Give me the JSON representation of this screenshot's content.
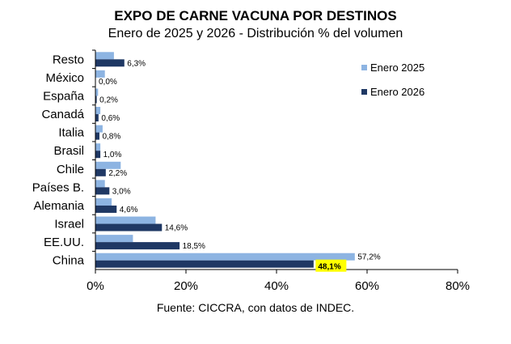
{
  "chart_data": {
    "type": "bar",
    "orientation": "horizontal",
    "title": "EXPO DE CARNE VACUNA POR DESTINOS",
    "subtitle": "Enero de 2025 y 2026 - Distribución % del volumen",
    "source": "Fuente: CICCRA, con datos de INDEC.",
    "categories": [
      "Resto",
      "México",
      "España",
      "Canadá",
      "Italia",
      "Brasil",
      "Chile",
      "Países B.",
      "Alemania",
      "Israel",
      "EE.UU.",
      "China"
    ],
    "series": [
      {
        "name": "Enero 2025",
        "color": "#8db4e2",
        "values": [
          4.0,
          2.0,
          0.5,
          1.0,
          1.5,
          1.0,
          5.5,
          2.0,
          3.5,
          13.2,
          8.2,
          57.2
        ]
      },
      {
        "name": "Enero 2026",
        "color": "#1f3864",
        "values": [
          6.3,
          0.0,
          0.2,
          0.6,
          0.8,
          1.0,
          2.2,
          3.0,
          4.6,
          14.6,
          18.5,
          48.1
        ]
      }
    ],
    "data_labels": {
      "Enero 2025": [
        "",
        "",
        "",
        "",
        "",
        "",
        "",
        "",
        "",
        "",
        "",
        "57,2%"
      ],
      "Enero 2026": [
        "6,3%",
        "0,0%",
        "0,2%",
        "0,6%",
        "0,8%",
        "1,0%",
        "2,2%",
        "3,0%",
        "4,6%",
        "14,6%",
        "18,5%",
        "48,1%"
      ]
    },
    "highlight": {
      "label": "48,1%",
      "color": "#ffff00"
    },
    "xlim": [
      0,
      80
    ],
    "xticks": [
      "0%",
      "20%",
      "40%",
      "60%",
      "80%"
    ],
    "grid": false,
    "legend": "right"
  }
}
